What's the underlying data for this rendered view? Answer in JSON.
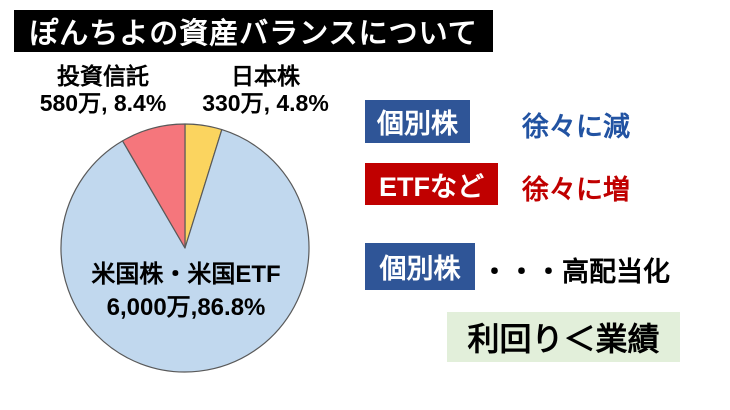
{
  "slide": {
    "title": "ぽんちよの資産バランスについて"
  },
  "pie_labels": {
    "toushin_name": "投資信託",
    "toushin_value": "580万, 8.4%",
    "nihon_name": "日本株",
    "nihon_value": "330万, 4.8%",
    "us_name": "米国株・米国ETF",
    "us_value": "6,000万,86.8%"
  },
  "chart_data": {
    "type": "pie",
    "title": "ぽんちよの資産バランスについて",
    "unit": "万円",
    "start_angle": "12-oclock",
    "direction": "clockwise",
    "border_color": "#595959",
    "slices": [
      {
        "label": "日本株",
        "amount": 330,
        "percent": 4.8,
        "color": "#FBD45F"
      },
      {
        "label": "米国株・米国ETF",
        "amount": 6000,
        "percent": 86.8,
        "color": "#C1D8EE"
      },
      {
        "label": "投資信託",
        "amount": 580,
        "percent": 8.4,
        "color": "#F5767C"
      }
    ]
  },
  "notes": {
    "row1": {
      "badge": "個別株",
      "text": "徐々に減"
    },
    "row2": {
      "badge": "ETFなど",
      "text": "徐々に増"
    },
    "row3": {
      "badge": "個別株",
      "text": "・・・高配当化"
    },
    "conclusion": {
      "text": "利回り＜業績"
    }
  },
  "colors": {
    "title_bg": "#000000",
    "title_fg": "#FFFFFF",
    "badge_blue": "#2F5597",
    "badge_red": "#C00000",
    "note_text_blue": "#2253A2",
    "note_text_red": "#C00000",
    "conclusion_bg": "#E2EFDA"
  }
}
